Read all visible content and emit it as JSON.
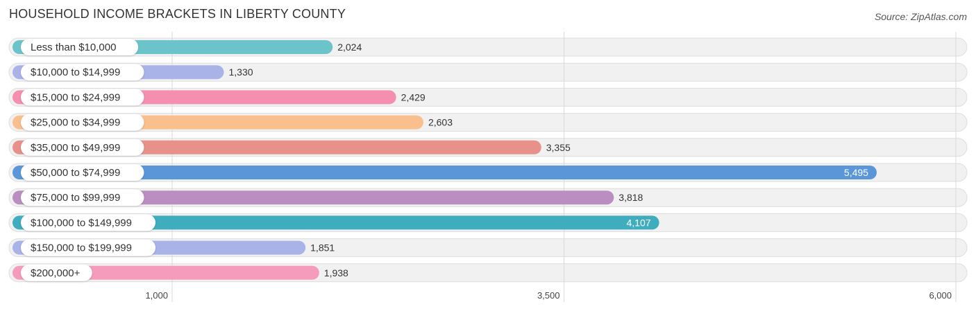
{
  "title": "HOUSEHOLD INCOME BRACKETS IN LIBERTY COUNTY",
  "source": "Source: ZipAtlas.com",
  "chart_data": {
    "type": "bar",
    "orientation": "horizontal",
    "categories": [
      "Less than $10,000",
      "$10,000 to $14,999",
      "$15,000 to $24,999",
      "$25,000 to $34,999",
      "$35,000 to $49,999",
      "$50,000 to $74,999",
      "$75,000 to $99,999",
      "$100,000 to $149,999",
      "$150,000 to $199,999",
      "$200,000+"
    ],
    "values": [
      2024,
      1330,
      2429,
      2603,
      3355,
      5495,
      3818,
      4107,
      1851,
      1938
    ],
    "value_labels": [
      "2,024",
      "1,330",
      "2,429",
      "2,603",
      "3,355",
      "5,495",
      "3,818",
      "4,107",
      "1,851",
      "1,938"
    ],
    "colors": [
      "#6cc4cb",
      "#aab3e8",
      "#f58fb0",
      "#f9c08e",
      "#e8908a",
      "#5b97d8",
      "#bb8ec2",
      "#3fadbd",
      "#aab3e8",
      "#f59bbb"
    ],
    "xticks": [
      1000,
      3500,
      6000
    ],
    "xtick_labels": [
      "1,000",
      "3,500",
      "6,000"
    ],
    "xlim": [
      -1000,
      6000
    ],
    "grid": true
  }
}
